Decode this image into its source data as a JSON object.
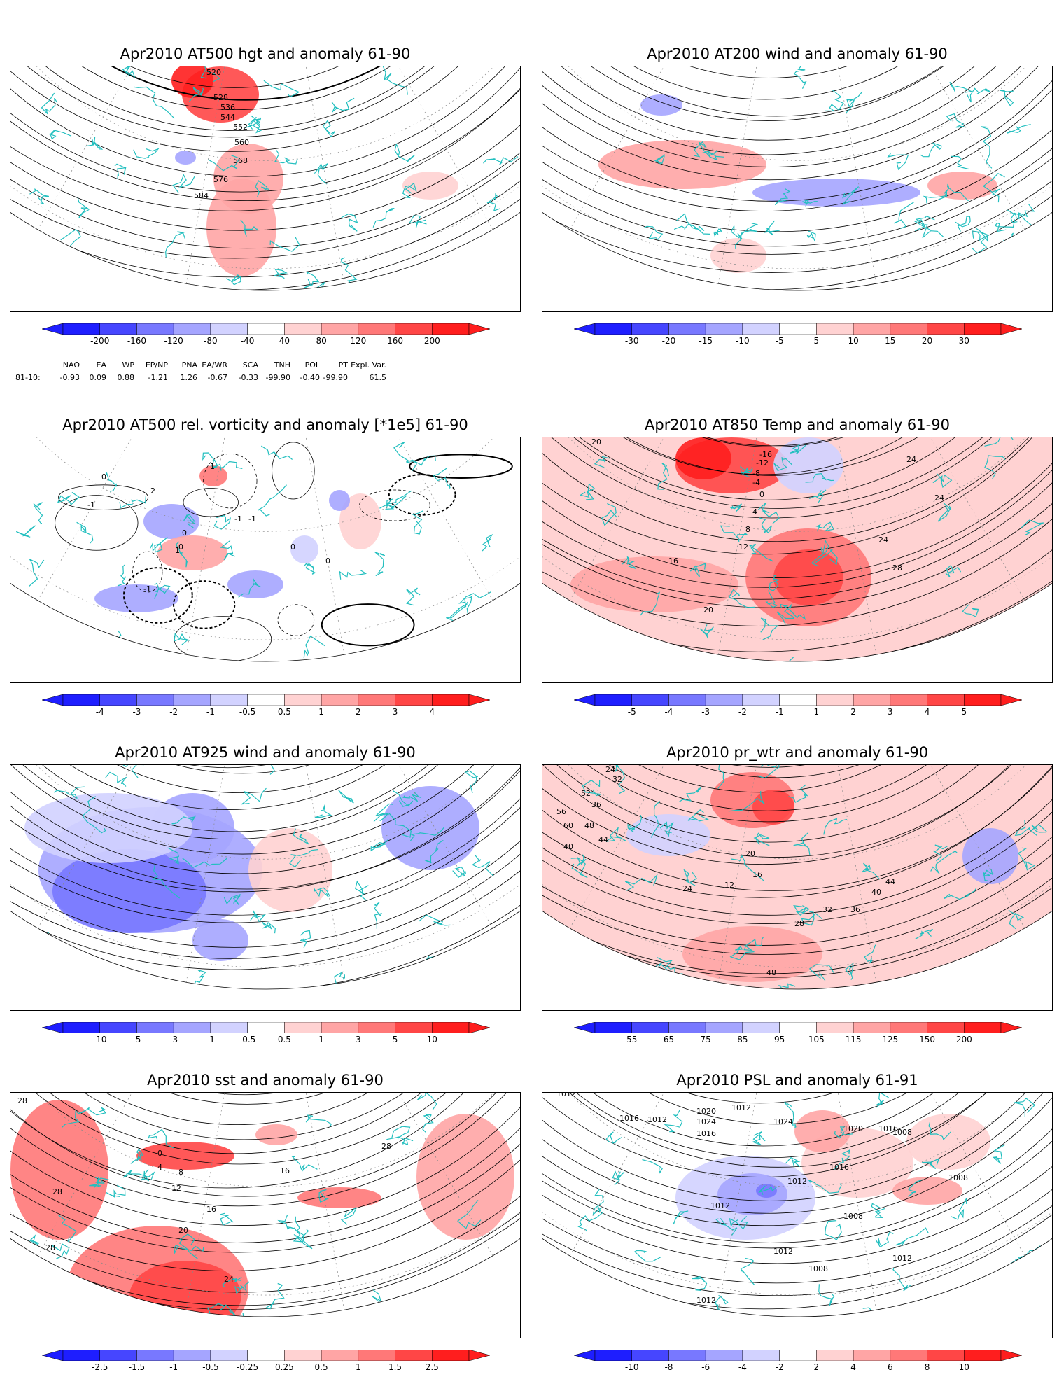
{
  "panels": [
    {
      "id": "p1",
      "title": "Apr2010 AT500 hgt and anomaly 61-90",
      "colorbar": [
        "-200",
        "-160",
        "-120",
        "-80",
        "-40",
        "40",
        "80",
        "120",
        "160",
        "200"
      ],
      "contour_labels": [
        "520",
        "528",
        "536",
        "544",
        "552",
        "560",
        "568",
        "576",
        "584"
      ]
    },
    {
      "id": "p2",
      "title": "Apr2010 AT200 wind and anomaly 61-90",
      "colorbar": [
        "-30",
        "-20",
        "-15",
        "-10",
        "-5",
        "5",
        "10",
        "15",
        "20",
        "30"
      ],
      "contour_labels": []
    },
    {
      "id": "p3",
      "title": "Apr2010 AT500 rel. vorticity and anomaly [*1e5] 61-90",
      "colorbar": [
        "-4",
        "-3",
        "-2",
        "-1",
        "-0.5",
        "0.5",
        "1",
        "2",
        "3",
        "4"
      ],
      "contour_labels": [
        "0",
        "-1",
        "1",
        "2",
        "-1",
        "0",
        "0",
        "-1",
        "1",
        "0",
        "-1",
        "0"
      ]
    },
    {
      "id": "p4",
      "title": "Apr2010 AT850 Temp and anomaly 61-90",
      "colorbar": [
        "-5",
        "-4",
        "-3",
        "-2",
        "-1",
        "1",
        "2",
        "3",
        "4",
        "5"
      ],
      "contour_labels": [
        "20",
        "-16",
        "-12",
        "-8",
        "-4",
        "0",
        "4",
        "8",
        "12",
        "16",
        "20",
        "24",
        "24",
        "24",
        "28"
      ]
    },
    {
      "id": "p5",
      "title": "Apr2010 AT925 wind and anomaly 61-90",
      "colorbar": [
        "-10",
        "-5",
        "-3",
        "-1",
        "-0.5",
        "0.5",
        "1",
        "3",
        "5",
        "10"
      ],
      "contour_labels": []
    },
    {
      "id": "p6",
      "title": "Apr2010 pr_wtr and anomaly 61-90",
      "colorbar": [
        "55",
        "65",
        "75",
        "85",
        "95",
        "105",
        "115",
        "125",
        "150",
        "200"
      ],
      "contour_labels": [
        "24",
        "32",
        "52",
        "56",
        "60",
        "36",
        "48",
        "44",
        "40",
        "20",
        "16",
        "12",
        "24",
        "28",
        "32",
        "36",
        "40",
        "44",
        "48"
      ]
    },
    {
      "id": "p7",
      "title": "Apr2010 sst and anomaly 61-90",
      "colorbar": [
        "-2.5",
        "-1.5",
        "-1",
        "-0.5",
        "-0.25",
        "0.25",
        "0.5",
        "1",
        "1.5",
        "2.5"
      ],
      "contour_labels": [
        "28",
        "28",
        "28",
        "20",
        "24",
        "16",
        "12",
        "8",
        "4",
        "0",
        "16",
        "28"
      ]
    },
    {
      "id": "p8",
      "title": "Apr2010 PSL and anomaly 61-91",
      "colorbar": [
        "-10",
        "-8",
        "-6",
        "-4",
        "-2",
        "2",
        "4",
        "6",
        "8",
        "10"
      ],
      "contour_labels": [
        "1012",
        "1016",
        "1012",
        "1020",
        "1024",
        "1016",
        "1012",
        "1024",
        "1020",
        "1016",
        "1008",
        "1012",
        "1016",
        "1012",
        "1008",
        "1012",
        "1008",
        "1012",
        "1008",
        "1012"
      ]
    }
  ],
  "indices": {
    "headers": [
      "NAO",
      "EA",
      "WP",
      "EP/NP",
      "PNA",
      "EA/WR",
      "SCA",
      "TNH",
      "POL",
      "PT",
      "Expl. Var."
    ],
    "row_label": "81-10:",
    "values": [
      "-0.93",
      "0.09",
      "0.88",
      "-1.21",
      "1.26",
      "-0.67",
      "-0.33",
      "-99.90",
      "-0.40",
      "-99.90",
      "61.5"
    ]
  },
  "colors": {
    "coast": "#22bfbf",
    "contour": "#000000",
    "grid": "#888888",
    "blues": [
      "#1e1eff",
      "#4646ff",
      "#7878ff",
      "#a5a5ff",
      "#d2d2ff"
    ],
    "reds": [
      "#ffd2d2",
      "#ffa5a5",
      "#ff7878",
      "#ff4646",
      "#ff1e1e"
    ]
  }
}
